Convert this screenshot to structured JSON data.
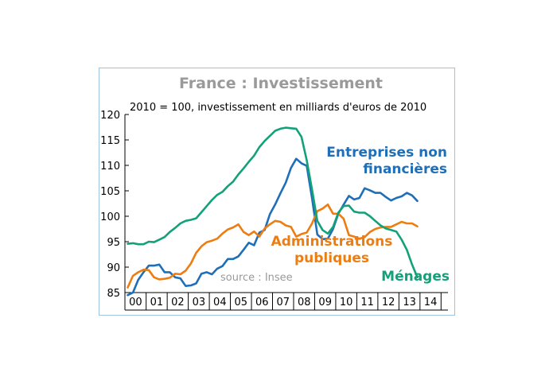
{
  "chart_data": {
    "type": "line",
    "title": "France : Investissement",
    "subtitle": "2010 = 100, investissement en milliards d'euros de 2010",
    "source": "source : Insee",
    "x_tick_labels": [
      "00",
      "01",
      "02",
      "03",
      "04",
      "05",
      "06",
      "07",
      "08",
      "09",
      "10",
      "11",
      "12",
      "13",
      "14"
    ],
    "y_ticks": [
      85,
      90,
      95,
      100,
      105,
      110,
      115,
      120
    ],
    "ylim": [
      85,
      120
    ],
    "x_start_year": 2000,
    "points_per_year": 4,
    "grid": false,
    "series": [
      {
        "name": "Entreprises non financières",
        "label_lines": [
          "Entreprises non",
          "financières"
        ],
        "color": "#1f6fb8",
        "values": [
          84.5,
          85.0,
          87.5,
          89.0,
          90.3,
          90.3,
          90.5,
          89.0,
          89.0,
          88.0,
          87.8,
          86.3,
          86.4,
          86.8,
          88.7,
          89.0,
          88.6,
          89.7,
          90.2,
          91.6,
          91.6,
          92.1,
          93.4,
          94.8,
          94.3,
          96.8,
          97.3,
          100.4,
          102.3,
          104.5,
          106.6,
          109.5,
          111.3,
          110.4,
          109.9,
          103.5,
          96.4,
          95.5,
          95.6,
          97.5,
          100.5,
          102.3,
          104.0,
          103.3,
          103.6,
          105.5,
          105.1,
          104.6,
          104.6,
          103.8,
          103.1,
          103.6,
          103.9,
          104.6,
          104.1,
          103.0
        ]
      },
      {
        "name": "Administrations publiques",
        "label_lines": [
          "Administrations",
          "publiques"
        ],
        "color": "#ee7d11",
        "values": [
          86.0,
          88.3,
          89.0,
          89.5,
          89.4,
          88.0,
          87.6,
          87.7,
          87.9,
          88.7,
          88.6,
          89.3,
          90.7,
          92.8,
          94.1,
          94.9,
          95.2,
          95.6,
          96.6,
          97.4,
          97.8,
          98.4,
          96.9,
          96.3,
          97.0,
          96.0,
          97.6,
          98.4,
          99.1,
          98.9,
          98.2,
          97.9,
          96.0,
          96.5,
          96.8,
          98.6,
          101.0,
          101.5,
          102.3,
          100.5,
          100.5,
          99.5,
          96.3,
          96.0,
          95.6,
          95.9,
          96.9,
          97.5,
          97.8,
          97.9,
          97.9,
          98.4,
          98.9,
          98.6,
          98.6,
          98.0
        ]
      },
      {
        "name": "Ménages",
        "label_lines": [
          "Ménages"
        ],
        "color": "#13a17a",
        "values": [
          94.6,
          94.7,
          94.5,
          94.5,
          95.0,
          94.9,
          95.4,
          95.9,
          96.9,
          97.7,
          98.6,
          99.1,
          99.3,
          99.6,
          100.8,
          102.0,
          103.2,
          104.2,
          104.8,
          105.9,
          106.8,
          108.2,
          109.4,
          110.7,
          111.9,
          113.6,
          114.8,
          115.8,
          116.8,
          117.2,
          117.4,
          117.3,
          117.2,
          115.6,
          111.0,
          105.2,
          99.1,
          97.3,
          96.6,
          97.9,
          100.7,
          102.0,
          102.1,
          100.9,
          100.7,
          100.7,
          100.0,
          99.1,
          98.2,
          97.6,
          97.3,
          97.0,
          95.4,
          93.4,
          90.5,
          88.0
        ]
      }
    ]
  }
}
